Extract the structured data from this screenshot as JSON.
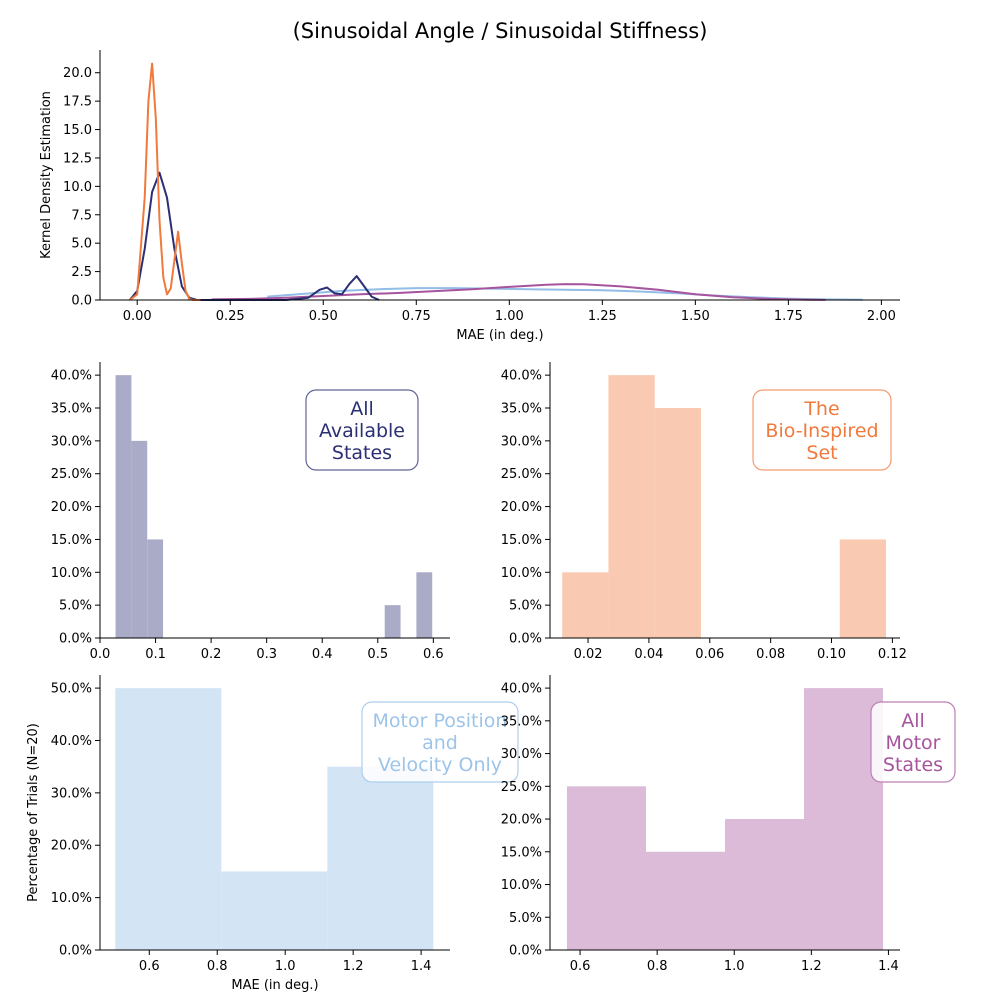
{
  "title": "(Sinusoidal Angle / Sinusoidal Stiffness)",
  "colors": {
    "all_available_states": "#2b2f73",
    "bio_inspired_set": "#f07a3c",
    "motor_position_velocity": "#92bde6",
    "all_motor_states": "#a6549e"
  },
  "chart_data": [
    {
      "id": "kde",
      "type": "line",
      "xlabel": "MAE (in deg.)",
      "ylabel": "Kernel Density Estimation",
      "xlim": [
        -0.1,
        2.05
      ],
      "ylim": [
        0,
        22
      ],
      "xticks": [
        0.0,
        0.25,
        0.5,
        0.75,
        1.0,
        1.25,
        1.5,
        1.75,
        2.0
      ],
      "xtick_labels": [
        "0.00",
        "0.25",
        "0.50",
        "0.75",
        "1.00",
        "1.25",
        "1.50",
        "1.75",
        "2.00"
      ],
      "yticks": [
        0,
        2.5,
        5,
        7.5,
        10,
        12.5,
        15,
        17.5,
        20
      ],
      "ytick_labels": [
        "0.0",
        "2.5",
        "5.0",
        "7.5",
        "10.0",
        "12.5",
        "15.0",
        "17.5",
        "20.0"
      ],
      "series": [
        {
          "color_key": "motor_position_velocity",
          "x": [
            0.35,
            0.45,
            0.55,
            0.65,
            0.75,
            0.85,
            0.95,
            1.05,
            1.15,
            1.25,
            1.35,
            1.45,
            1.55,
            1.65,
            1.75,
            1.85,
            1.95
          ],
          "y": [
            0.3,
            0.55,
            0.8,
            0.95,
            1.05,
            1.05,
            1.0,
            0.95,
            0.9,
            0.85,
            0.75,
            0.6,
            0.4,
            0.25,
            0.12,
            0.05,
            0.02
          ]
        },
        {
          "color_key": "all_motor_states",
          "x": [
            0.2,
            0.3,
            0.4,
            0.5,
            0.6,
            0.7,
            0.8,
            0.9,
            1.0,
            1.1,
            1.15,
            1.2,
            1.3,
            1.4,
            1.5,
            1.6,
            1.7,
            1.8,
            1.85
          ],
          "y": [
            0.05,
            0.1,
            0.2,
            0.35,
            0.5,
            0.62,
            0.78,
            0.95,
            1.15,
            1.35,
            1.4,
            1.38,
            1.2,
            0.9,
            0.5,
            0.25,
            0.1,
            0.03,
            0.01
          ]
        },
        {
          "color_key": "all_available_states",
          "x": [
            -0.02,
            0.0,
            0.02,
            0.04,
            0.06,
            0.08,
            0.1,
            0.12,
            0.14,
            0.16,
            0.2,
            0.3,
            0.4,
            0.46,
            0.49,
            0.51,
            0.53,
            0.55,
            0.57,
            0.59,
            0.61,
            0.63,
            0.65
          ],
          "y": [
            0.0,
            0.8,
            4.5,
            9.5,
            11.2,
            9.0,
            4.5,
            1.2,
            0.2,
            0.0,
            0.0,
            0.0,
            0.0,
            0.2,
            0.9,
            1.1,
            0.6,
            0.5,
            1.4,
            2.1,
            1.2,
            0.3,
            0.0
          ]
        },
        {
          "color_key": "bio_inspired_set",
          "x": [
            -0.02,
            0.0,
            0.02,
            0.03,
            0.04,
            0.05,
            0.06,
            0.07,
            0.08,
            0.09,
            0.1,
            0.11,
            0.12,
            0.13,
            0.14,
            0.15,
            0.17
          ],
          "y": [
            0.0,
            0.5,
            9.0,
            17.5,
            20.8,
            16.0,
            7.0,
            2.0,
            0.5,
            1.0,
            3.5,
            6.0,
            3.2,
            0.8,
            0.1,
            0.0,
            0.0
          ]
        }
      ]
    },
    {
      "id": "hist-all-available",
      "type": "bar",
      "color_key": "all_available_states",
      "legend_label": "All\nAvailable\nStates",
      "xlim": [
        0.0,
        0.63
      ],
      "ylim": [
        0,
        42
      ],
      "xticks": [
        0.0,
        0.1,
        0.2,
        0.3,
        0.4,
        0.5,
        0.6
      ],
      "xtick_labels": [
        "0.0",
        "0.1",
        "0.2",
        "0.3",
        "0.4",
        "0.5",
        "0.6"
      ],
      "yticks": [
        0,
        5,
        10,
        15,
        20,
        25,
        30,
        35,
        40
      ],
      "ytick_labels": [
        "0.0%",
        "5.0%",
        "10.0%",
        "15.0%",
        "20.0%",
        "25.0%",
        "30.0%",
        "35.0%",
        "40.0%"
      ],
      "bin_edges": [
        0.028,
        0.0565,
        0.085,
        0.1135,
        0.142,
        0.1705,
        0.199,
        0.2275,
        0.256,
        0.2845,
        0.313,
        0.3415,
        0.37,
        0.3985,
        0.427,
        0.4555,
        0.484,
        0.5125,
        0.541,
        0.5695,
        0.598
      ],
      "values": [
        40,
        30,
        15,
        0,
        0,
        0,
        0,
        0,
        0,
        0,
        0,
        0,
        0,
        0,
        0,
        0,
        0,
        5,
        0,
        10
      ]
    },
    {
      "id": "hist-bio-inspired",
      "type": "bar",
      "color_key": "bio_inspired_set",
      "legend_label": "The\nBio-Inspired\nSet",
      "xlim": [
        0.0075,
        0.1225
      ],
      "ylim": [
        0,
        42
      ],
      "xticks": [
        0.02,
        0.04,
        0.06,
        0.08,
        0.1,
        0.12
      ],
      "xtick_labels": [
        "0.02",
        "0.04",
        "0.06",
        "0.08",
        "0.10",
        "0.12"
      ],
      "yticks": [
        0,
        5,
        10,
        15,
        20,
        25,
        30,
        35,
        40
      ],
      "ytick_labels": [
        "0.0%",
        "5.0%",
        "10.0%",
        "15.0%",
        "20.0%",
        "25.0%",
        "30.0%",
        "35.0%",
        "40.0%"
      ],
      "bin_edges": [
        0.0115,
        0.0267,
        0.0419,
        0.0571,
        0.0723,
        0.0875,
        0.1027,
        0.1179
      ],
      "values": [
        10,
        40,
        35,
        0,
        0,
        0,
        15
      ]
    },
    {
      "id": "hist-motor-pos-vel",
      "type": "bar",
      "color_key": "motor_position_velocity",
      "legend_label": "Motor Position\nand\nVelocity Only",
      "xlabel": "MAE (in deg.)",
      "ylabel": "Percentage of Trials (N=20)",
      "xlim": [
        0.455,
        1.485
      ],
      "ylim": [
        0,
        52.5
      ],
      "xticks": [
        0.6,
        0.8,
        1.0,
        1.2,
        1.4
      ],
      "xtick_labels": [
        "0.6",
        "0.8",
        "1.0",
        "1.2",
        "1.4"
      ],
      "yticks": [
        0,
        10,
        20,
        30,
        40,
        50
      ],
      "ytick_labels": [
        "0.0%",
        "10.0%",
        "20.0%",
        "30.0%",
        "40.0%",
        "50.0%"
      ],
      "bin_edges": [
        0.5,
        0.812,
        1.124,
        1.436
      ],
      "values": [
        50,
        15,
        35
      ]
    },
    {
      "id": "hist-all-motor",
      "type": "bar",
      "color_key": "all_motor_states",
      "legend_label": "All\nMotor\nStates",
      "xlim": [
        0.522,
        1.43
      ],
      "ylim": [
        0,
        42
      ],
      "xticks": [
        0.6,
        0.8,
        1.0,
        1.2,
        1.4
      ],
      "xtick_labels": [
        "0.6",
        "0.8",
        "1.0",
        "1.2",
        "1.4"
      ],
      "yticks": [
        0,
        5,
        10,
        15,
        20,
        25,
        30,
        35,
        40
      ],
      "ytick_labels": [
        "0.0%",
        "5.0%",
        "10.0%",
        "15.0%",
        "20.0%",
        "25.0%",
        "30.0%",
        "35.0%",
        "40.0%"
      ],
      "bin_edges": [
        0.566,
        0.771,
        0.976,
        1.181,
        1.386
      ],
      "values": [
        25,
        15,
        20,
        40
      ]
    }
  ]
}
